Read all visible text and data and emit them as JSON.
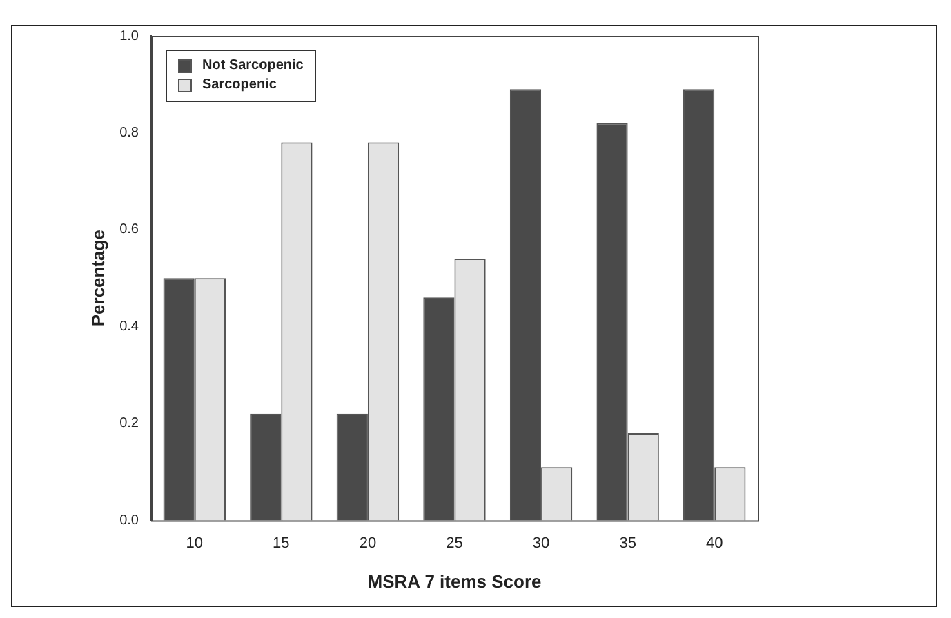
{
  "chart_data": {
    "type": "bar",
    "xlabel": "MSRA 7 items Score",
    "ylabel": "Percentage",
    "categories": [
      "10",
      "15",
      "20",
      "25",
      "30",
      "35",
      "40"
    ],
    "series": [
      {
        "name": "Not Sarcopenic",
        "color": "#4a4a4a",
        "values": [
          0.5,
          0.22,
          0.22,
          0.46,
          0.89,
          0.82,
          0.89
        ]
      },
      {
        "name": "Sarcopenic",
        "color": "#e3e3e3",
        "values": [
          0.5,
          0.78,
          0.78,
          0.54,
          0.11,
          0.18,
          0.11
        ]
      }
    ],
    "ylim": [
      0,
      1
    ],
    "yticks": [
      {
        "value": 0,
        "label": "0.0"
      },
      0.2,
      0.4,
      0.6,
      0.8,
      {
        "value": 1,
        "label": "1.0"
      }
    ],
    "grid": false,
    "legend": "top left"
  }
}
